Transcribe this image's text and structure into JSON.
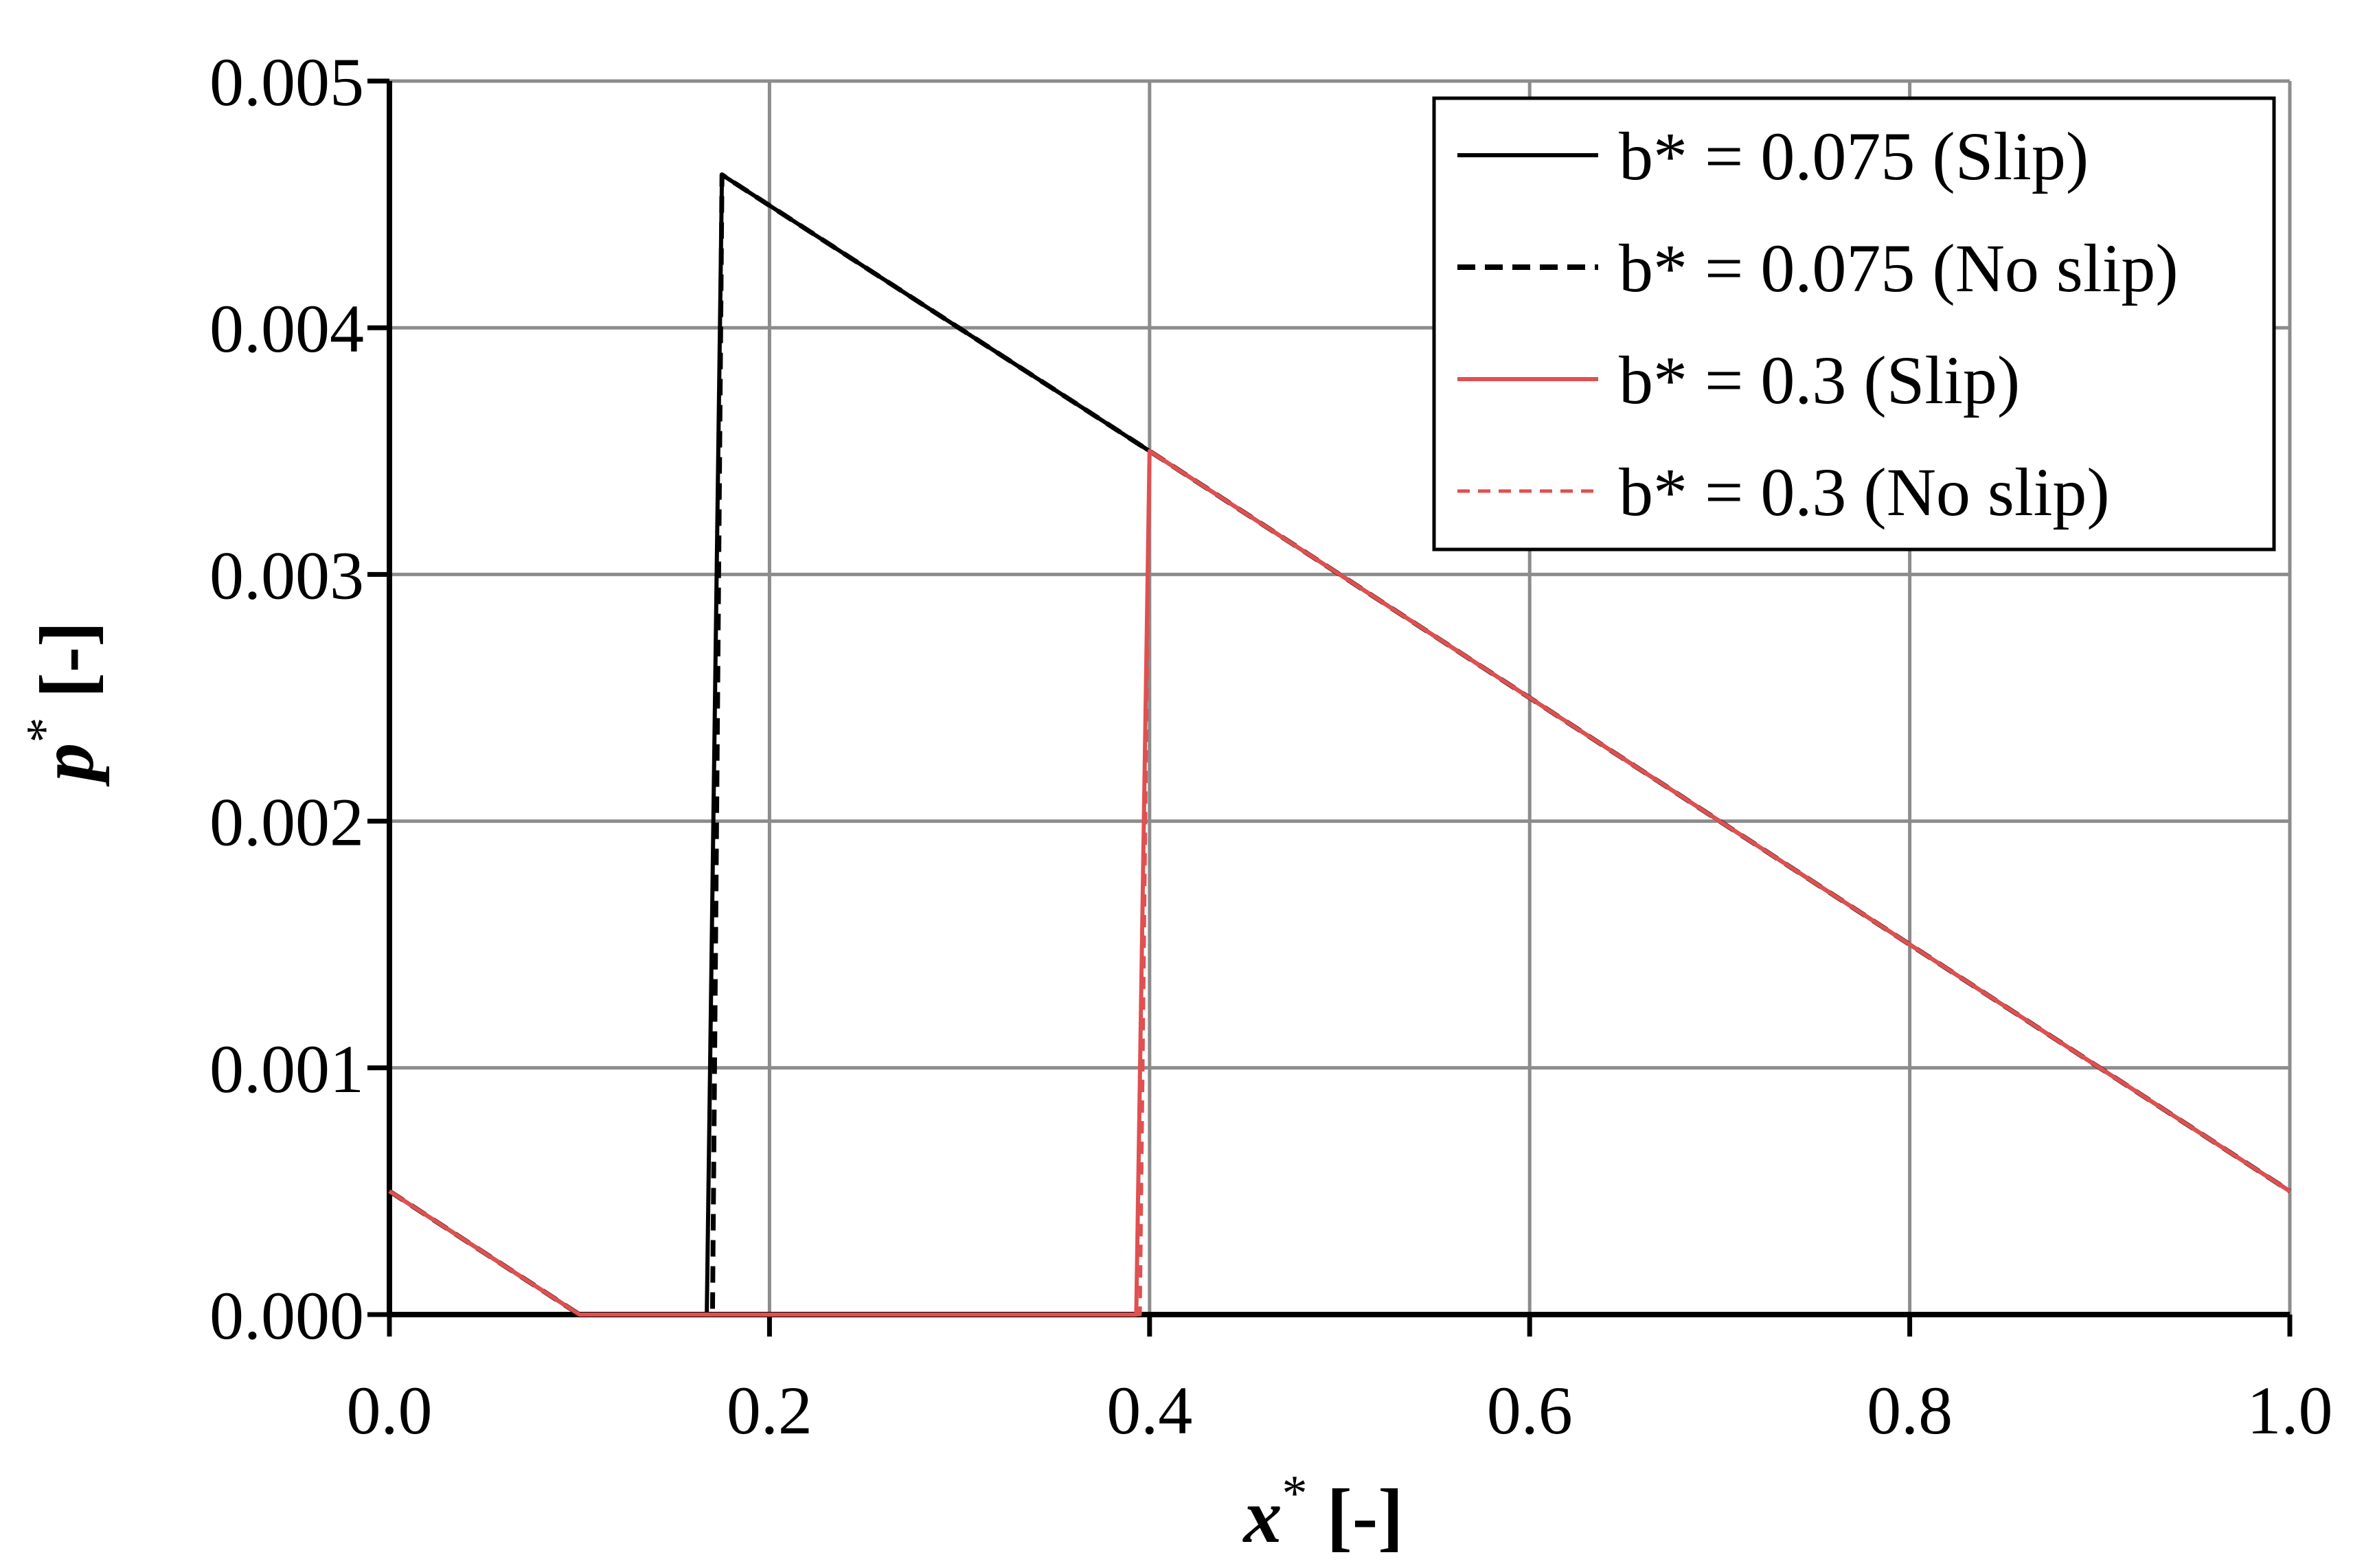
{
  "chart_data": {
    "type": "line",
    "title": "",
    "xlabel": {
      "symbol": "x",
      "sup": "*",
      "unit": " [-]"
    },
    "ylabel": {
      "symbol": "p",
      "sup": "*",
      "unit": " [-]"
    },
    "xlim": [
      0,
      1
    ],
    "ylim": [
      0,
      0.005
    ],
    "x_ticks": [
      0,
      0.2,
      0.4,
      0.6,
      0.8,
      1.0
    ],
    "x_tick_labels": [
      "0.0",
      "0.2",
      "0.4",
      "0.6",
      "0.8",
      "1.0"
    ],
    "y_ticks": [
      0,
      0.001,
      0.002,
      0.003,
      0.004,
      0.005
    ],
    "y_tick_labels": [
      "0.000",
      "0.001",
      "0.002",
      "0.003",
      "0.004",
      "0.005"
    ],
    "grid": true,
    "legend_position": "top-right",
    "series": [
      {
        "name": "b* = 0.075 (Slip)",
        "color": "#000000",
        "dash": "solid",
        "x": [
          0,
          0.1,
          0.167,
          0.175,
          0.4,
          0.5,
          0.6,
          0.7,
          0.8,
          0.9,
          1.0
        ],
        "y": [
          0.0005,
          0.0,
          0.0,
          0.00462,
          0.0035,
          0.003,
          0.0025,
          0.002,
          0.0015,
          0.001,
          0.0005
        ]
      },
      {
        "name": "b* = 0.075 (No slip)",
        "color": "#000000",
        "dash": "dashed",
        "x": [
          0,
          0.1,
          0.17,
          0.175,
          0.4,
          0.5,
          0.6,
          0.7,
          0.8,
          0.9,
          1.0
        ],
        "y": [
          0.0005,
          0.0,
          0.0,
          0.00462,
          0.0035,
          0.003,
          0.0025,
          0.002,
          0.0015,
          0.001,
          0.0005
        ]
      },
      {
        "name": "b* = 0.3 (Slip)",
        "color": "#e05050",
        "dash": "solid",
        "x": [
          0,
          0.1,
          0.393,
          0.4,
          0.5,
          0.6,
          0.7,
          0.8,
          0.9,
          1.0
        ],
        "y": [
          0.0005,
          0.0,
          0.0,
          0.0035,
          0.003,
          0.0025,
          0.002,
          0.0015,
          0.001,
          0.0005
        ]
      },
      {
        "name": "b* = 0.3 (No slip)",
        "color": "#e05050",
        "dash": "dashed",
        "x": [
          0,
          0.1,
          0.395,
          0.4,
          0.5,
          0.6,
          0.7,
          0.8,
          0.9,
          1.0
        ],
        "y": [
          0.0005,
          0.0,
          0.0,
          0.0035,
          0.003,
          0.0025,
          0.002,
          0.0015,
          0.001,
          0.0005
        ]
      }
    ]
  }
}
